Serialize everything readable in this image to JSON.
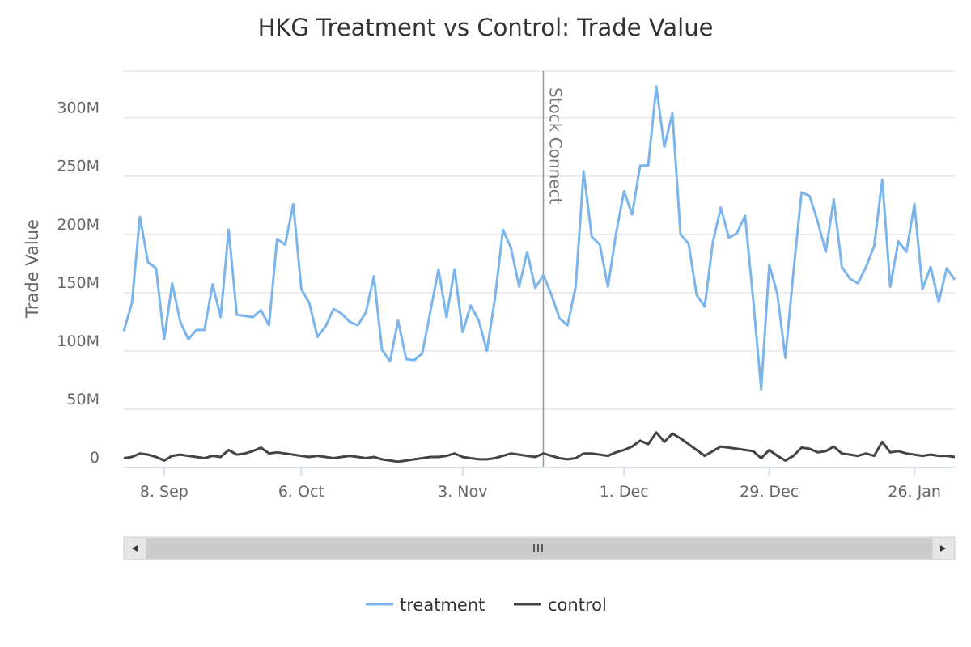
{
  "chart_data": {
    "type": "line",
    "title": "HKG Treatment vs Control: Trade Value",
    "ylabel": "Trade Value",
    "xlabel": "",
    "ylim": [
      0,
      340
    ],
    "y_unit_suffix": "M",
    "y_ticks": [
      0,
      50,
      100,
      150,
      200,
      250,
      300
    ],
    "y_tick_labels": [
      "0",
      "50M",
      "100M",
      "150M",
      "200M",
      "250M",
      "300M"
    ],
    "x_tick_labels": [
      "8. Sep",
      "6. Oct",
      "3. Nov",
      "1. Dec",
      "29. Dec",
      "26. Jan"
    ],
    "x_tick_indices": [
      5,
      22,
      42,
      62,
      80,
      98
    ],
    "plot_line": {
      "label": "Stock Connect",
      "index": 52
    },
    "grid": true,
    "legend_position": "bottom-center",
    "series": [
      {
        "name": "treatment",
        "color": "#7cb5ec",
        "values": [
          117,
          141,
          215,
          176,
          171,
          110,
          158,
          125,
          110,
          118,
          118,
          157,
          129,
          204,
          131,
          130,
          129,
          135,
          122,
          196,
          191,
          226,
          153,
          141,
          112,
          121,
          136,
          132,
          125,
          122,
          133,
          164,
          101,
          91,
          126,
          93,
          92,
          98,
          134,
          170,
          129,
          170,
          116,
          139,
          126,
          100,
          145,
          204,
          188,
          155,
          185,
          154,
          165,
          148,
          128,
          122,
          155,
          254,
          198,
          191,
          155,
          200,
          237,
          217,
          259,
          259,
          327,
          275,
          304,
          200,
          192,
          148,
          138,
          193,
          223,
          197,
          201,
          216,
          145,
          67,
          174,
          149,
          94,
          168,
          236,
          233,
          211,
          185,
          230,
          172,
          162,
          158,
          172,
          190,
          247,
          155,
          194,
          185,
          226,
          153,
          172,
          142,
          171,
          161
        ]
      },
      {
        "name": "control",
        "color": "#434348",
        "values": [
          8,
          9,
          12,
          11,
          9,
          6,
          10,
          11,
          10,
          9,
          8,
          10,
          9,
          15,
          11,
          12,
          14,
          17,
          12,
          13,
          12,
          11,
          10,
          9,
          10,
          9,
          8,
          9,
          10,
          9,
          8,
          9,
          7,
          6,
          5,
          6,
          7,
          8,
          9,
          9,
          10,
          12,
          9,
          8,
          7,
          7,
          8,
          10,
          12,
          11,
          10,
          9,
          12,
          10,
          8,
          7,
          8,
          12,
          12,
          11,
          10,
          13,
          15,
          18,
          23,
          20,
          30,
          22,
          29,
          25,
          20,
          15,
          10,
          14,
          18,
          17,
          16,
          15,
          14,
          8,
          15,
          10,
          6,
          10,
          17,
          16,
          13,
          14,
          18,
          12,
          11,
          10,
          12,
          10,
          22,
          13,
          14,
          12,
          11,
          10,
          11,
          10,
          10,
          9
        ]
      }
    ]
  },
  "scrollbar": {
    "thumb_grip": "III",
    "left_arrow": "◀",
    "right_arrow": "▶"
  },
  "legend": {
    "items": [
      "treatment",
      "control"
    ]
  }
}
